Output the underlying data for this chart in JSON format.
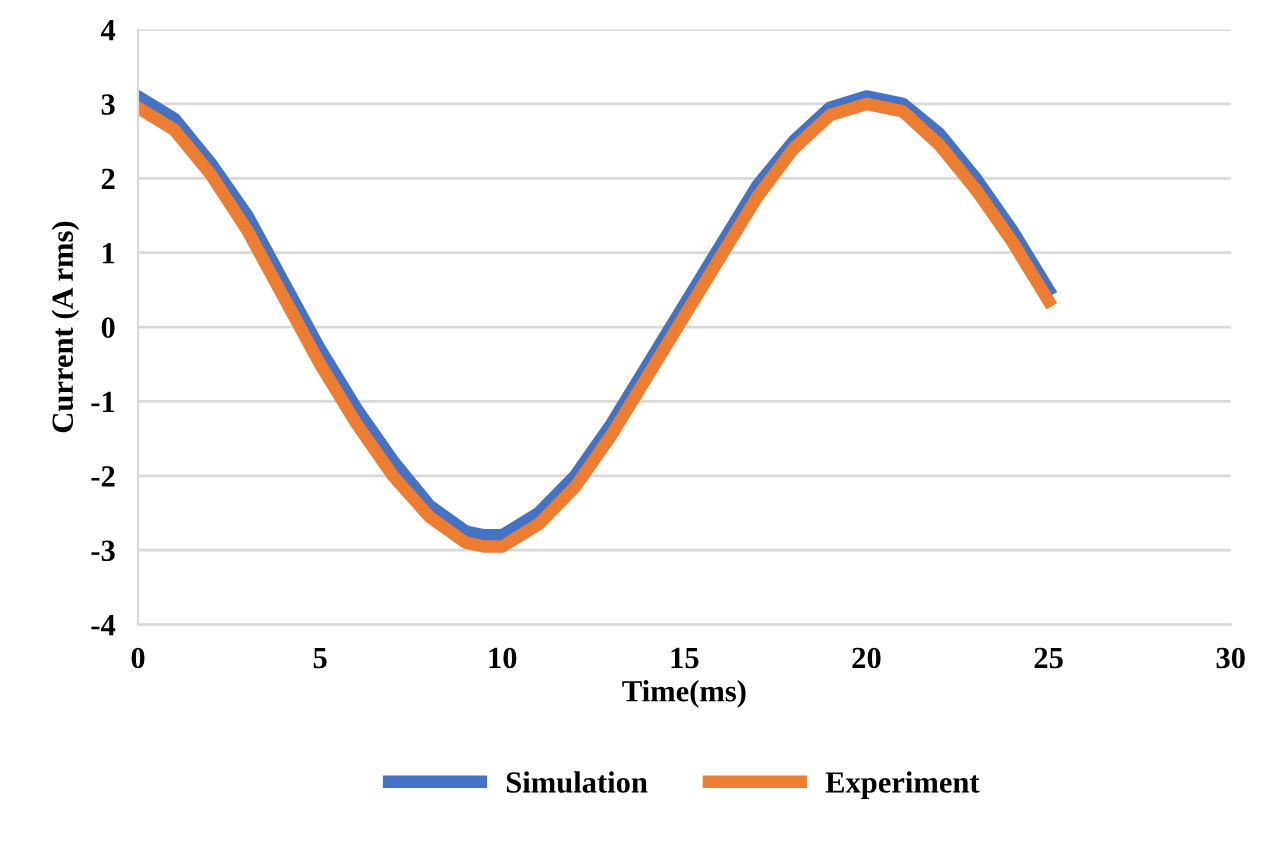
{
  "chart_data": {
    "type": "line",
    "xlabel": "Time(ms)",
    "ylabel": "Current (A rms)",
    "x": [
      0,
      1,
      2,
      3,
      4,
      5,
      6,
      7,
      8,
      9,
      9.5,
      10,
      11,
      12,
      13,
      14,
      15,
      16,
      17,
      18,
      19,
      20,
      21,
      22,
      23,
      24,
      25
    ],
    "series": [
      {
        "name": "Simulation",
        "color": "#4472c4",
        "values": [
          3.1,
          2.8,
          2.2,
          1.5,
          0.6,
          -0.3,
          -1.1,
          -1.8,
          -2.4,
          -2.75,
          -2.8,
          -2.8,
          -2.5,
          -2.0,
          -1.3,
          -0.5,
          0.3,
          1.1,
          1.9,
          2.5,
          2.95,
          3.1,
          3.0,
          2.6,
          2.0,
          1.3,
          0.5
        ]
      },
      {
        "name": "Experiment",
        "color": "#ed7d31",
        "values": [
          2.95,
          2.65,
          2.05,
          1.3,
          0.4,
          -0.5,
          -1.3,
          -2.0,
          -2.55,
          -2.9,
          -2.95,
          -2.95,
          -2.65,
          -2.15,
          -1.45,
          -0.65,
          0.15,
          0.95,
          1.75,
          2.4,
          2.85,
          3.0,
          2.9,
          2.45,
          1.85,
          1.15,
          0.35
        ]
      }
    ],
    "xlim": [
      0,
      30
    ],
    "xticks": [
      0,
      5,
      10,
      15,
      20,
      25,
      30
    ],
    "ylim": [
      -4,
      4
    ],
    "yticks": [
      -4,
      -3,
      -2,
      -1,
      0,
      1,
      2,
      3,
      4
    ],
    "grid": "y",
    "legend": "bottom",
    "marker": "none",
    "line_style": "solid"
  }
}
